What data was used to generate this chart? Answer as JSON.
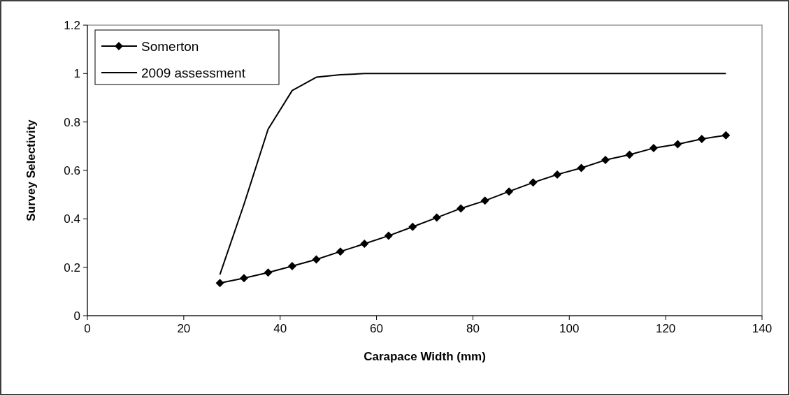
{
  "chart_data": {
    "type": "line",
    "xlabel": "Carapace Width (mm)",
    "ylabel": "Survey Selectivity",
    "xlim": [
      0,
      140
    ],
    "xticks": [
      0,
      20,
      40,
      60,
      80,
      100,
      120,
      140
    ],
    "ylim": [
      0,
      1.2
    ],
    "yticks": [
      0,
      0.2,
      0.4,
      0.6,
      0.8,
      1,
      1.2
    ],
    "legend": "top left",
    "grid": false,
    "series": [
      {
        "name": "Somerton",
        "color": "#000000",
        "marker": "diamond",
        "x": [
          27.5,
          32.5,
          37.5,
          42.5,
          47.5,
          52.5,
          57.5,
          62.5,
          67.5,
          72.5,
          77.5,
          82.5,
          87.5,
          92.5,
          97.5,
          102.5,
          107.5,
          112.5,
          117.5,
          122.5,
          127.5,
          132.5
        ],
        "values": [
          0.135,
          0.155,
          0.178,
          0.205,
          0.232,
          0.265,
          0.297,
          0.33,
          0.367,
          0.405,
          0.443,
          0.475,
          0.513,
          0.55,
          0.583,
          0.61,
          0.643,
          0.665,
          0.692,
          0.708,
          0.73,
          0.745
        ]
      },
      {
        "name": "2009 assessment",
        "color": "#000000",
        "marker": "none",
        "x": [
          27.5,
          32.5,
          37.5,
          42.5,
          47.5,
          52.5,
          57.5,
          62.5,
          67.5,
          72.5,
          77.5,
          82.5,
          87.5,
          92.5,
          97.5,
          102.5,
          107.5,
          112.5,
          117.5,
          122.5,
          127.5,
          132.5
        ],
        "values": [
          0.17,
          0.46,
          0.77,
          0.93,
          0.985,
          0.995,
          1,
          1,
          1,
          1,
          1,
          1,
          1,
          1,
          1,
          1,
          1,
          1,
          1,
          1,
          1,
          1
        ]
      }
    ]
  }
}
